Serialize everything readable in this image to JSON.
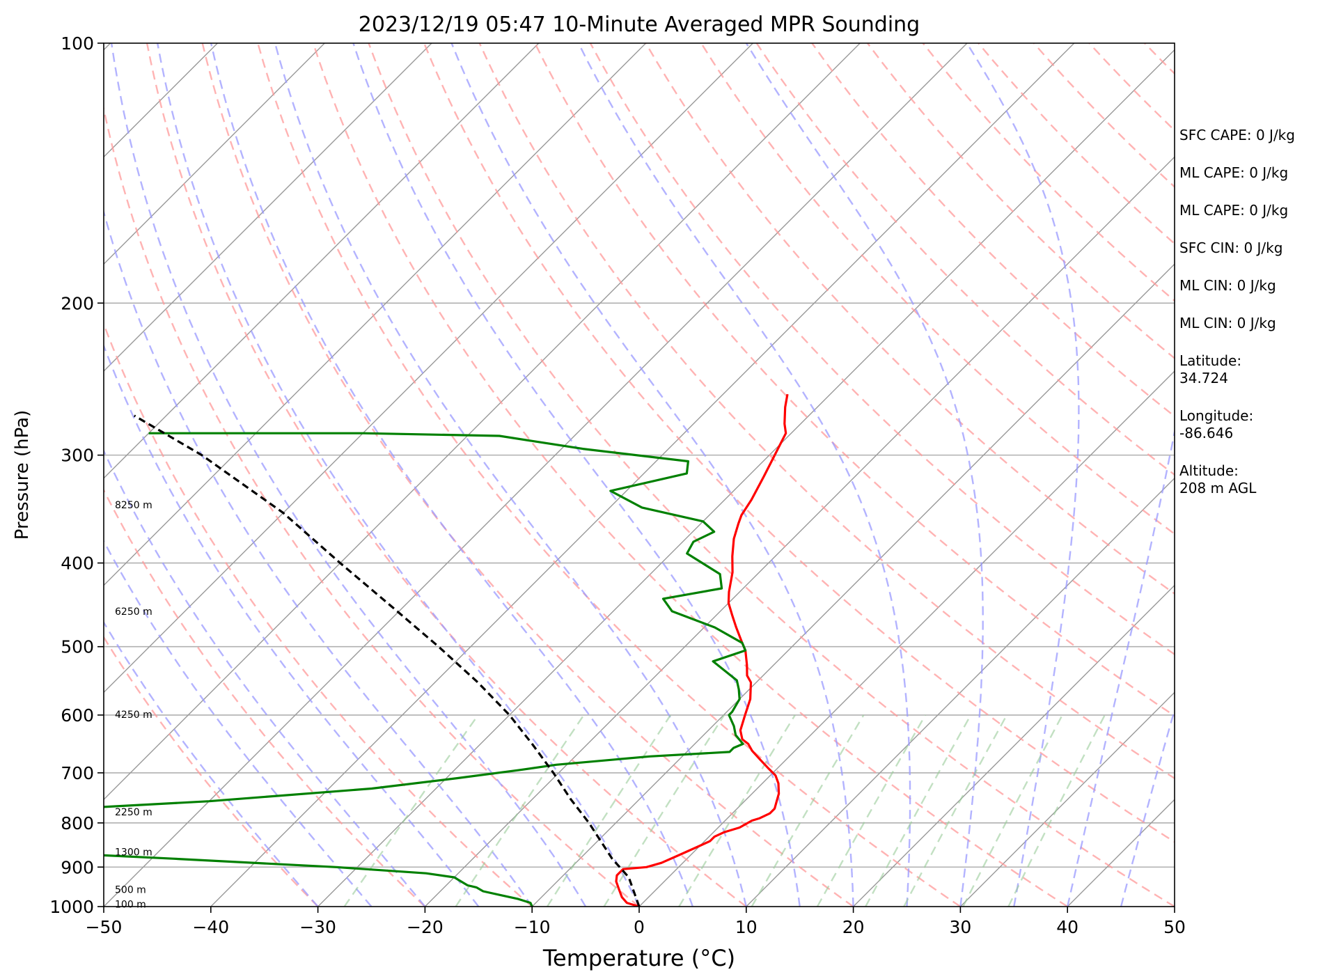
{
  "chart_data": {
    "type": "line",
    "title": "2023/12/19 05:47 10-Minute Averaged MPR Sounding",
    "xlabel": "Temperature (°C)",
    "ylabel": "Pressure (hPa)",
    "xlim": [
      -50,
      50
    ],
    "ylim": [
      1000,
      100
    ],
    "y_scale": "log",
    "skew": "skew-T",
    "grid": true,
    "x_ticks": [
      "−50",
      "−40",
      "−30",
      "−20",
      "−10",
      "0",
      "10",
      "20",
      "30",
      "40",
      "50"
    ],
    "y_ticks": [
      "100",
      "200",
      "300",
      "400",
      "500",
      "600",
      "700",
      "800",
      "900",
      "1000"
    ],
    "height_labels": [
      {
        "text": "8250 m",
        "p": 343
      },
      {
        "text": "6250 m",
        "p": 456
      },
      {
        "text": "4250 m",
        "p": 600
      },
      {
        "text": "2250 m",
        "p": 778
      },
      {
        "text": "1300 m",
        "p": 866
      },
      {
        "text": "500 m",
        "p": 957
      },
      {
        "text": "100 m",
        "p": 995
      }
    ],
    "series": [
      {
        "role": "temperature",
        "color": "#ff0000",
        "points": [
          [
            0,
            1000
          ],
          [
            -1.5,
            990
          ],
          [
            -2.5,
            975
          ],
          [
            -3.5,
            955
          ],
          [
            -4.5,
            935
          ],
          [
            -5,
            920
          ],
          [
            -5,
            905
          ],
          [
            -3,
            900
          ],
          [
            -2,
            890
          ],
          [
            -1,
            870
          ],
          [
            0,
            850
          ],
          [
            0.5,
            840
          ],
          [
            0.5,
            830
          ],
          [
            1,
            820
          ],
          [
            2,
            810
          ],
          [
            2.5,
            795
          ],
          [
            3,
            790
          ],
          [
            3.5,
            780
          ],
          [
            3.5,
            770
          ],
          [
            3,
            755
          ],
          [
            2.5,
            740
          ],
          [
            1.5,
            720
          ],
          [
            0.5,
            705
          ],
          [
            -1,
            690
          ],
          [
            -2.5,
            675
          ],
          [
            -4,
            660
          ],
          [
            -5,
            648
          ],
          [
            -6,
            640
          ],
          [
            -7,
            625
          ],
          [
            -8,
            600
          ],
          [
            -9,
            575
          ],
          [
            -10.5,
            550
          ],
          [
            -11.5,
            540
          ],
          [
            -12.5,
            525
          ],
          [
            -14,
            505
          ],
          [
            -15,
            495
          ],
          [
            -17,
            475
          ],
          [
            -18.5,
            460
          ],
          [
            -20,
            445
          ],
          [
            -21,
            432
          ],
          [
            -22.5,
            410
          ],
          [
            -24,
            393
          ],
          [
            -25.5,
            375
          ],
          [
            -26.5,
            360
          ],
          [
            -27,
            352
          ],
          [
            -27.5,
            338
          ],
          [
            -28.5,
            318
          ],
          [
            -29.5,
            300
          ],
          [
            -30.5,
            283
          ],
          [
            -31.5,
            276
          ],
          [
            -33,
            264
          ],
          [
            -34,
            255
          ]
        ]
      },
      {
        "role": "dewpoint",
        "color": "#008000",
        "points": [
          [
            -10,
            1000
          ],
          [
            -10.5,
            990
          ],
          [
            -12,
            980
          ],
          [
            -14,
            970
          ],
          [
            -16,
            960
          ],
          [
            -17,
            950
          ],
          [
            -18,
            945
          ],
          [
            -19,
            935
          ],
          [
            -20,
            925
          ],
          [
            -23,
            915
          ],
          [
            -32,
            900
          ],
          [
            -48,
            880
          ],
          [
            -70,
            855
          ],
          [
            -80,
            840
          ],
          [
            -80,
            830
          ],
          [
            -79,
            820
          ],
          [
            -80,
            810
          ],
          [
            -80,
            790
          ],
          [
            -66,
            775
          ],
          [
            -50,
            755
          ],
          [
            -36,
            730
          ],
          [
            -29,
            710
          ],
          [
            -24,
            695
          ],
          [
            -21,
            685
          ],
          [
            -13,
            670
          ],
          [
            -6,
            662
          ],
          [
            -6,
            655
          ],
          [
            -5.5,
            648
          ],
          [
            -7,
            633
          ],
          [
            -8,
            618
          ],
          [
            -9.5,
            600
          ],
          [
            -9.5,
            595
          ],
          [
            -10,
            575
          ],
          [
            -11,
            560
          ],
          [
            -12,
            547
          ],
          [
            -16,
            520
          ],
          [
            -14,
            505
          ],
          [
            -15,
            495
          ],
          [
            -19,
            475
          ],
          [
            -24.5,
            455
          ],
          [
            -26.5,
            440
          ],
          [
            -22,
            428
          ],
          [
            -23.5,
            412
          ],
          [
            -28.5,
            390
          ],
          [
            -29,
            378
          ],
          [
            -28,
            368
          ],
          [
            -30,
            358
          ],
          [
            -37,
            345
          ],
          [
            -41.5,
            330
          ],
          [
            -36,
            315
          ],
          [
            -37,
            305
          ],
          [
            -48,
            295
          ],
          [
            -57,
            285
          ],
          [
            -70,
            283
          ],
          [
            -90,
            283
          ]
        ]
      },
      {
        "role": "parcel",
        "color": "#000000",
        "points": [
          [
            0,
            1000
          ],
          [
            -3.7,
            925
          ],
          [
            -7,
            880
          ],
          [
            -9,
            850
          ],
          [
            -12.5,
            800
          ],
          [
            -16.5,
            750
          ],
          [
            -20.5,
            700
          ],
          [
            -25,
            650
          ],
          [
            -30,
            600
          ],
          [
            -36,
            550
          ],
          [
            -43,
            500
          ],
          [
            -51,
            450
          ],
          [
            -60,
            400
          ],
          [
            -70,
            350
          ],
          [
            -83,
            300
          ],
          [
            -93,
            270
          ]
        ]
      }
    ],
    "reference_lines": {
      "dry_adiabat_color": "#ff9999",
      "moist_adiabat_color": "#9999ff",
      "mixing_ratio_color": "#99cc99",
      "isotherm_color": "#999999"
    }
  },
  "side_info": [
    "SFC CAPE: 0 J/kg",
    "ML CAPE: 0 J/kg",
    "ML CAPE: 0 J/kg",
    "SFC CIN: 0 J/kg",
    "ML CIN: 0 J/kg",
    "ML CIN: 0 J/kg",
    "Latitude:\n34.724",
    "Longitude:\n-86.646",
    "Altitude:\n208 m AGL"
  ]
}
